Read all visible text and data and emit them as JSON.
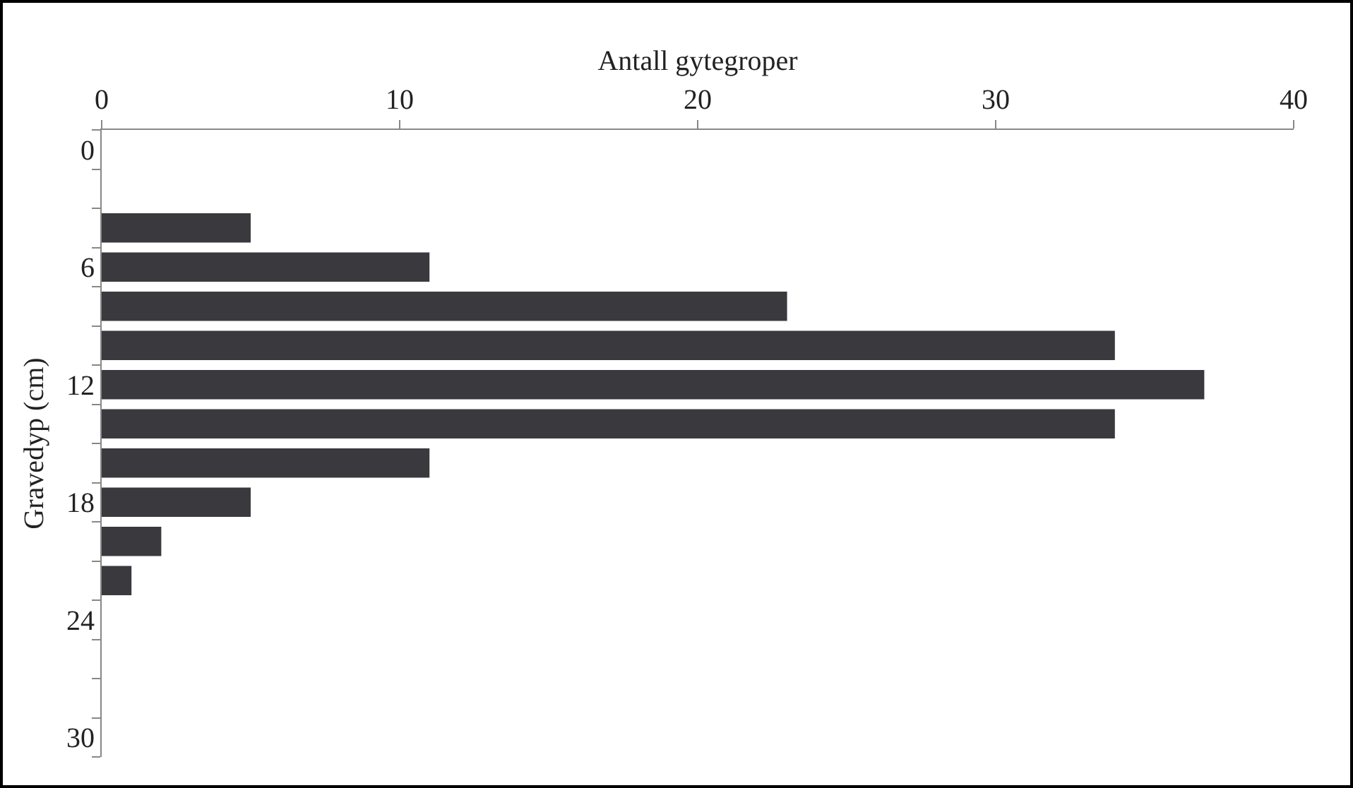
{
  "chart_data": {
    "type": "bar",
    "orientation": "horizontal",
    "xlabel": "Antall gytegroper",
    "ylabel": "Gravedyp (cm)",
    "categories": [
      "0",
      null,
      null,
      "6",
      null,
      null,
      "12",
      null,
      null,
      "18",
      null,
      null,
      "24",
      null,
      null,
      "30"
    ],
    "values": [
      0,
      0,
      5,
      11,
      23,
      34,
      37,
      34,
      11,
      5,
      2,
      1,
      0,
      0,
      0,
      0
    ],
    "color": "#3a3a3e",
    "xlim": [
      0,
      40
    ],
    "xticks": [
      0,
      10,
      20,
      30,
      40
    ],
    "grid": false,
    "legend": false
  }
}
